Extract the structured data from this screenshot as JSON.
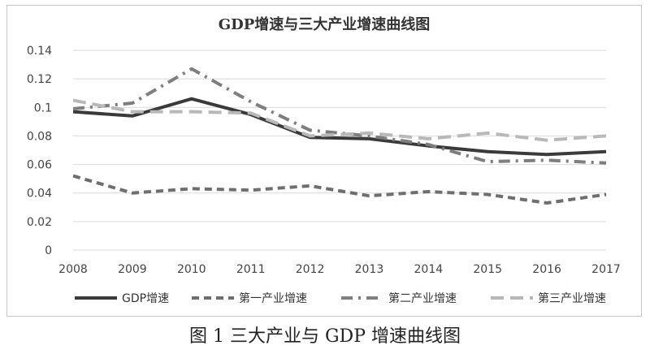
{
  "chart_data": {
    "type": "line",
    "title": "GDP增速与三大产业增速曲线图",
    "xlabel": "",
    "ylabel": "",
    "categories": [
      "2008",
      "2009",
      "2010",
      "2011",
      "2012",
      "2013",
      "2014",
      "2015",
      "2016",
      "2017"
    ],
    "ylim": [
      0,
      0.14
    ],
    "yticks": [
      0,
      0.02,
      0.04,
      0.06,
      0.08,
      0.1,
      0.12,
      0.14
    ],
    "ytick_labels": [
      "0",
      "0.02",
      "0.04",
      "0.06",
      "0.08",
      "0.1",
      "0.12",
      "0.14"
    ],
    "grid": true,
    "legend_position": "bottom",
    "series": [
      {
        "name": "GDP增速",
        "values": [
          0.097,
          0.094,
          0.106,
          0.095,
          0.079,
          0.078,
          0.073,
          0.069,
          0.067,
          0.069
        ],
        "color": "#3a3a3a",
        "dash": "solid"
      },
      {
        "name": "第一产业增速",
        "values": [
          0.052,
          0.04,
          0.043,
          0.042,
          0.045,
          0.038,
          0.041,
          0.039,
          0.033,
          0.039
        ],
        "color": "#6e6e6e",
        "dash": "dash"
      },
      {
        "name": "第二产业增速",
        "values": [
          0.099,
          0.103,
          0.127,
          0.104,
          0.084,
          0.08,
          0.074,
          0.062,
          0.063,
          0.061
        ],
        "color": "#7e7e7e",
        "dash": "dashdot"
      },
      {
        "name": "第三产业增速",
        "values": [
          0.105,
          0.097,
          0.097,
          0.096,
          0.08,
          0.082,
          0.078,
          0.082,
          0.077,
          0.08
        ],
        "color": "#b8b8b8",
        "dash": "longdash"
      }
    ]
  },
  "caption": "图 1  三大产业与 GDP 增速曲线图"
}
